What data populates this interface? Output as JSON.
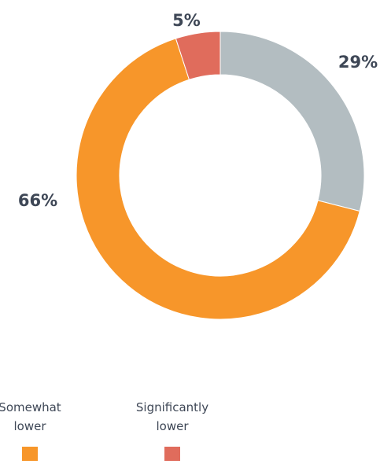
{
  "chart_data": {
    "type": "donut",
    "categories": [
      null,
      "Somewhat lower",
      "Significantly lower"
    ],
    "values": [
      29,
      66,
      5
    ],
    "value_labels": [
      "29%",
      "66%",
      "5%"
    ],
    "colors": [
      "#b3bdc1",
      "#f7962a",
      "#e06c5c"
    ]
  }
}
